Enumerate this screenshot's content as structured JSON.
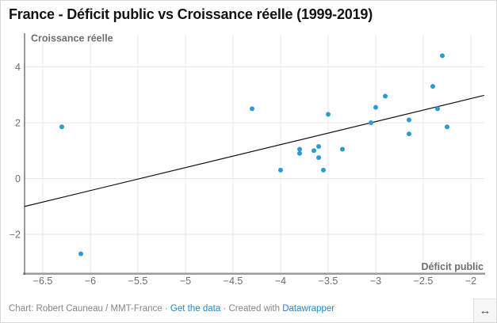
{
  "header": {
    "title": "France - Déficit public vs Croissance réelle (1999-2019)"
  },
  "chart_data": {
    "type": "scatter",
    "title": "France - Déficit public vs Croissance réelle (1999-2019)",
    "xlabel": "Déficit public",
    "ylabel": "Croissance réelle",
    "xlim": [
      -6.69,
      -1.86
    ],
    "ylim": [
      -3.4,
      5.1
    ],
    "grid": true,
    "point_color": "#2b9cd1",
    "trendline_color": "#111111",
    "x_ticks": [
      {
        "value": -6.5,
        "label": "−6.5"
      },
      {
        "value": -6,
        "label": "−6"
      },
      {
        "value": -5.5,
        "label": "−5.5"
      },
      {
        "value": -5,
        "label": "−5"
      },
      {
        "value": -4.5,
        "label": "−4.5"
      },
      {
        "value": -4,
        "label": "−4"
      },
      {
        "value": -3.5,
        "label": "−3.5"
      },
      {
        "value": -3,
        "label": "−3"
      },
      {
        "value": -2.5,
        "label": "−2.5"
      },
      {
        "value": -2,
        "label": "−2"
      }
    ],
    "y_ticks": [
      {
        "value": 4,
        "label": "4"
      },
      {
        "value": 2,
        "label": "2"
      },
      {
        "value": 0,
        "label": "0"
      },
      {
        "value": -2,
        "label": "−2"
      }
    ],
    "points": [
      {
        "x": -6.3,
        "y": 1.85
      },
      {
        "x": -6.1,
        "y": -2.7
      },
      {
        "x": -4.3,
        "y": 2.5
      },
      {
        "x": -4.0,
        "y": 0.3
      },
      {
        "x": -3.8,
        "y": 1.05
      },
      {
        "x": -3.8,
        "y": 0.9
      },
      {
        "x": -3.65,
        "y": 1.0
      },
      {
        "x": -3.6,
        "y": 1.15
      },
      {
        "x": -3.6,
        "y": 0.75
      },
      {
        "x": -3.55,
        "y": 0.3
      },
      {
        "x": -3.5,
        "y": 2.3
      },
      {
        "x": -3.35,
        "y": 1.05
      },
      {
        "x": -3.05,
        "y": 2.0
      },
      {
        "x": -3.0,
        "y": 2.55
      },
      {
        "x": -2.9,
        "y": 2.95
      },
      {
        "x": -2.65,
        "y": 2.1
      },
      {
        "x": -2.65,
        "y": 1.6
      },
      {
        "x": -2.4,
        "y": 3.3
      },
      {
        "x": -2.35,
        "y": 2.5
      },
      {
        "x": -2.3,
        "y": 4.4
      },
      {
        "x": -2.25,
        "y": 1.85
      }
    ],
    "trendline": {
      "x1": -6.69,
      "y1": -1.0,
      "x2": -1.86,
      "y2": 2.98
    }
  },
  "footer": {
    "attribution": "Chart: Robert Cauneau / MMT-France",
    "separator": "·",
    "link_get_data": "Get the data",
    "created_with": "Created with",
    "link_datawrapper": "Datawrapper",
    "link_color": "#1e87c8"
  },
  "resize_handle": {
    "icon": "↔"
  }
}
